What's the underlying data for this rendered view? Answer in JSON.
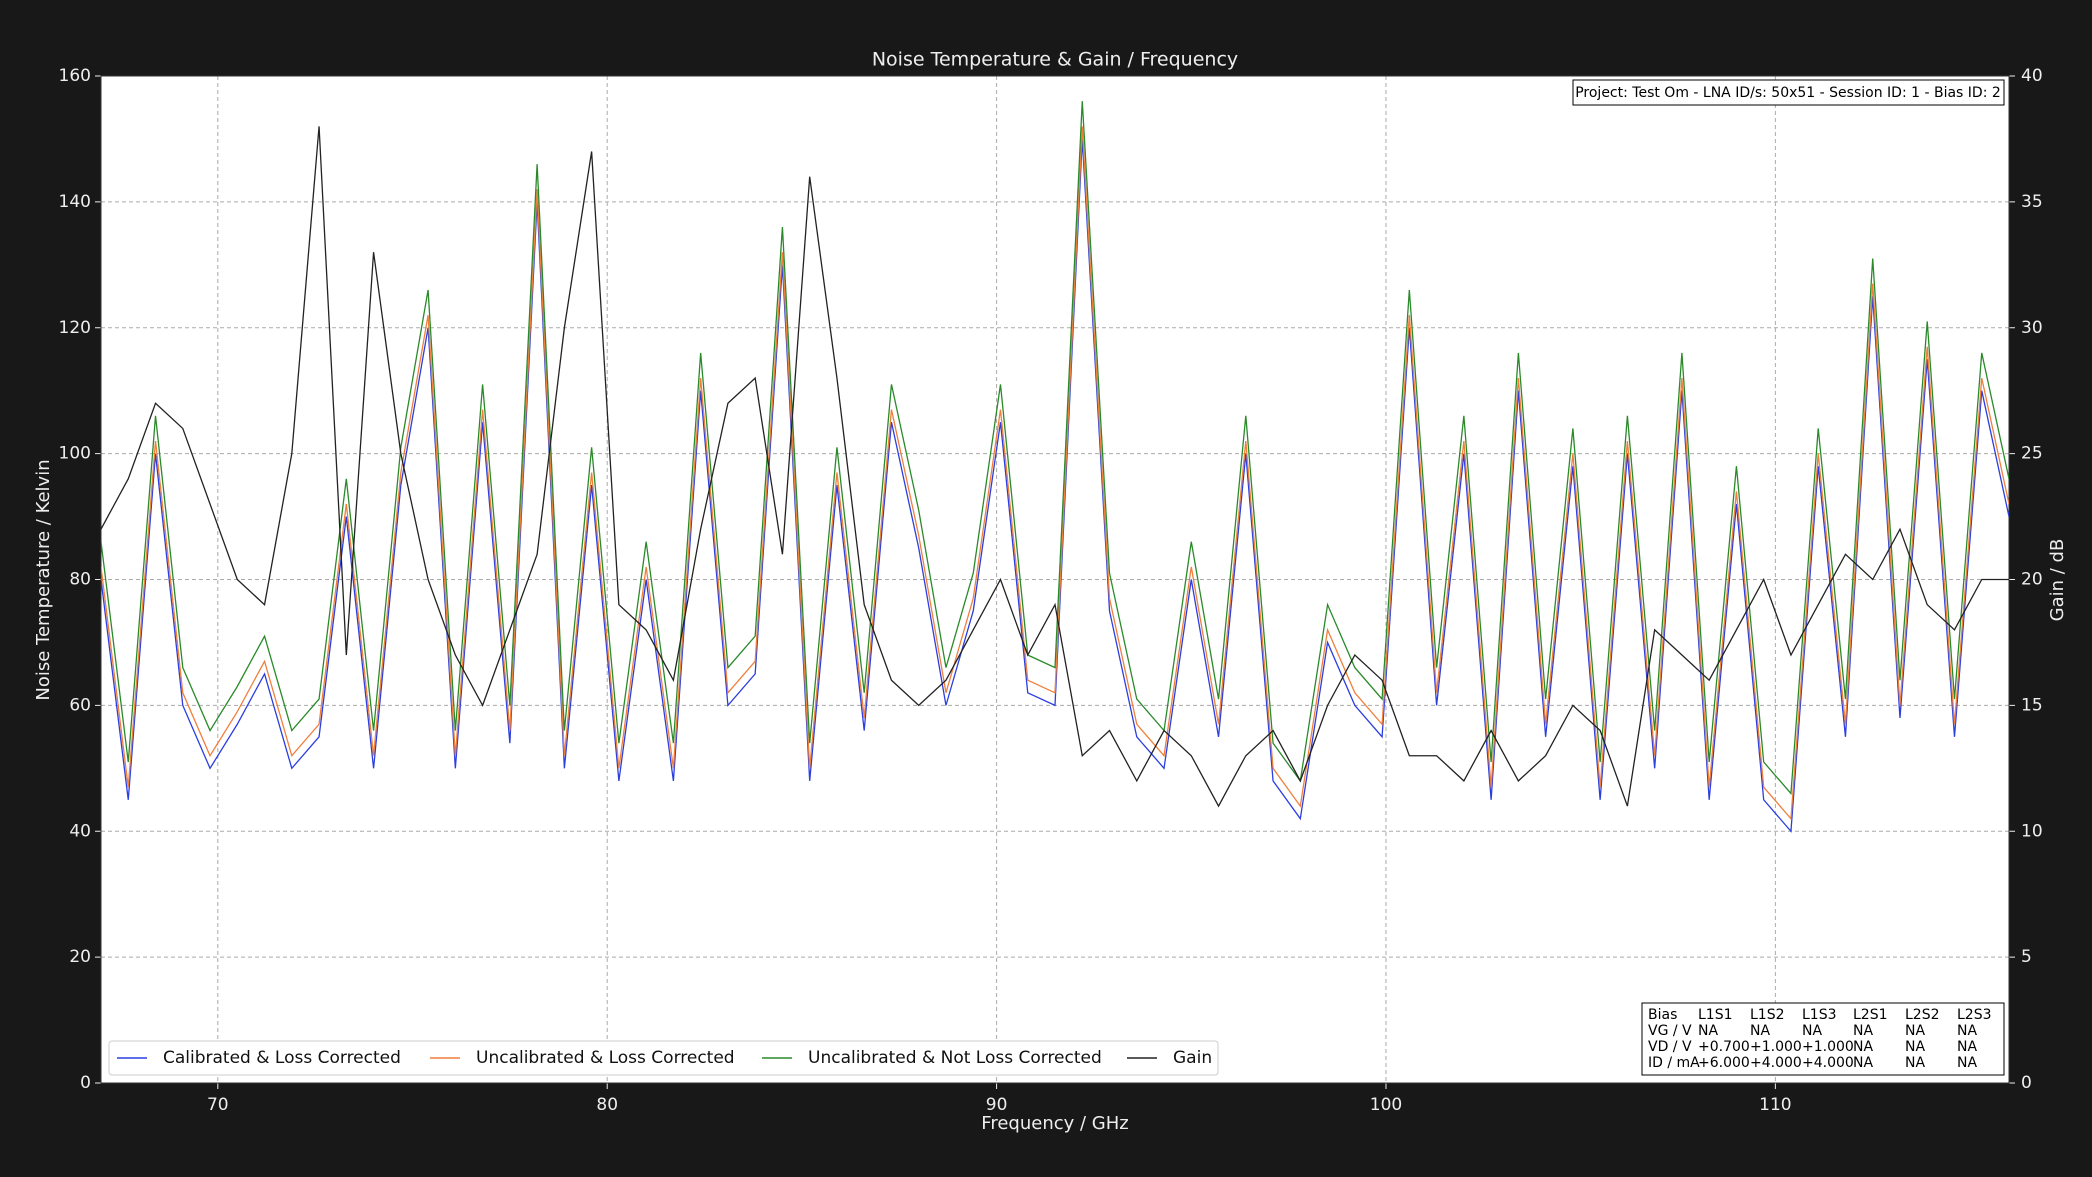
{
  "chart_data": {
    "type": "line",
    "title": "Noise Temperature & Gain / Frequency",
    "x_label": "Frequency / GHz",
    "y_label": "Noise Temperature / Kelvin",
    "y2_label": "Gain / dB",
    "xlim": [
      67,
      116
    ],
    "xticks": [
      70,
      80,
      90,
      100,
      110
    ],
    "ylim": [
      0,
      160
    ],
    "yticks": [
      0,
      20,
      40,
      60,
      80,
      100,
      120,
      140,
      160
    ],
    "y2lim": [
      0,
      40
    ],
    "y2ticks": [
      0,
      5,
      10,
      15,
      20,
      25,
      30,
      35,
      40
    ],
    "grid": true,
    "legend": "lower left",
    "x": [
      67,
      67.7,
      68.4,
      69.1,
      69.8,
      70.5,
      71.2,
      71.9,
      72.6,
      73.3,
      74,
      74.7,
      75.4,
      76.1,
      76.8,
      77.5,
      78.2,
      78.9,
      79.6,
      80.3,
      81,
      81.7,
      82.4,
      83.1,
      83.8,
      84.5,
      85.2,
      85.9,
      86.6,
      87.3,
      88,
      88.7,
      89.4,
      90.1,
      90.8,
      91.5,
      92.2,
      92.9,
      93.6,
      94.3,
      95,
      95.7,
      96.4,
      97.1,
      97.8,
      98.5,
      99.2,
      99.9,
      100.6,
      101.3,
      102,
      102.7,
      103.4,
      104.1,
      104.8,
      105.5,
      106.2,
      106.9,
      107.6,
      108.3,
      109,
      109.7,
      110.4,
      111.1,
      111.8,
      112.5,
      113.2,
      113.9,
      114.6,
      115.3,
      116
    ],
    "series": [
      {
        "name": "Calibrated & Loss Corrected",
        "color": "#2b3ee0",
        "values": [
          80,
          45,
          100,
          60,
          50,
          57,
          65,
          50,
          55,
          90,
          50,
          95,
          120,
          50,
          105,
          54,
          140,
          50,
          95,
          48,
          80,
          48,
          110,
          60,
          65,
          130,
          48,
          95,
          56,
          105,
          85,
          60,
          75,
          105,
          62,
          60,
          150,
          75,
          55,
          50,
          80,
          55,
          100,
          48,
          42,
          70,
          60,
          55,
          120,
          60,
          100,
          45,
          110,
          55,
          98,
          45,
          100,
          50,
          110,
          45,
          92,
          45,
          40,
          98,
          55,
          125,
          58,
          115,
          55,
          110,
          90
        ]
      },
      {
        "name": "Uncalibrated & Loss Corrected",
        "color": "#f07f3c",
        "values": [
          82,
          47,
          102,
          62,
          52,
          59,
          67,
          52,
          57,
          92,
          52,
          97,
          122,
          52,
          107,
          56,
          142,
          52,
          97,
          50,
          82,
          50,
          112,
          62,
          67,
          132,
          50,
          97,
          58,
          107,
          87,
          62,
          77,
          107,
          64,
          62,
          152,
          77,
          57,
          52,
          82,
          57,
          102,
          50,
          44,
          72,
          62,
          57,
          122,
          62,
          102,
          47,
          112,
          57,
          100,
          47,
          102,
          52,
          112,
          47,
          94,
          47,
          42,
          100,
          57,
          127,
          60,
          117,
          57,
          112,
          92
        ]
      },
      {
        "name": "Uncalibrated & Not Loss Corrected",
        "color": "#2a8a2a",
        "values": [
          86,
          51,
          106,
          66,
          56,
          63,
          71,
          56,
          61,
          96,
          56,
          101,
          126,
          56,
          111,
          60,
          146,
          56,
          101,
          54,
          86,
          54,
          116,
          66,
          71,
          136,
          54,
          101,
          62,
          111,
          91,
          66,
          81,
          111,
          68,
          66,
          156,
          81,
          61,
          56,
          86,
          61,
          106,
          54,
          48,
          76,
          66,
          61,
          126,
          66,
          106,
          51,
          116,
          61,
          104,
          51,
          106,
          56,
          116,
          51,
          98,
          51,
          46,
          104,
          61,
          131,
          64,
          121,
          61,
          116,
          96
        ]
      },
      {
        "name": "Gain",
        "color": "#222222",
        "axis": "y2",
        "values": [
          22,
          24,
          27,
          26,
          23,
          20,
          19,
          25,
          38,
          17,
          33,
          25,
          20,
          17,
          15,
          18,
          21,
          30,
          37,
          19,
          18,
          16,
          22,
          27,
          28,
          21,
          36,
          28,
          19,
          16,
          15,
          16,
          18,
          20,
          17,
          19,
          13,
          14,
          12,
          14,
          13,
          11,
          13,
          14,
          12,
          15,
          17,
          16,
          13,
          13,
          12,
          14,
          12,
          13,
          15,
          14,
          11,
          18,
          17,
          16,
          18,
          20,
          17,
          19,
          21,
          20,
          22,
          19,
          18,
          20,
          20
        ]
      }
    ],
    "project_box": "Project: Test Om - LNA ID/s: 50x51 - Session ID: 1 - Bias ID: 2",
    "bias_table": [
      [
        "Bias",
        "L1S1",
        "L1S2",
        "L1S3",
        "L2S1",
        "L2S2",
        "L2S3"
      ],
      [
        "VG / V",
        "NA",
        "NA",
        "NA",
        "NA",
        "NA",
        "NA"
      ],
      [
        "VD / V",
        "+0.700",
        "+1.000",
        "+1.000",
        "NA",
        "NA",
        "NA"
      ],
      [
        "ID / mA",
        "+6.000",
        "+4.000",
        "+4.000",
        "NA",
        "NA",
        "NA"
      ]
    ]
  }
}
